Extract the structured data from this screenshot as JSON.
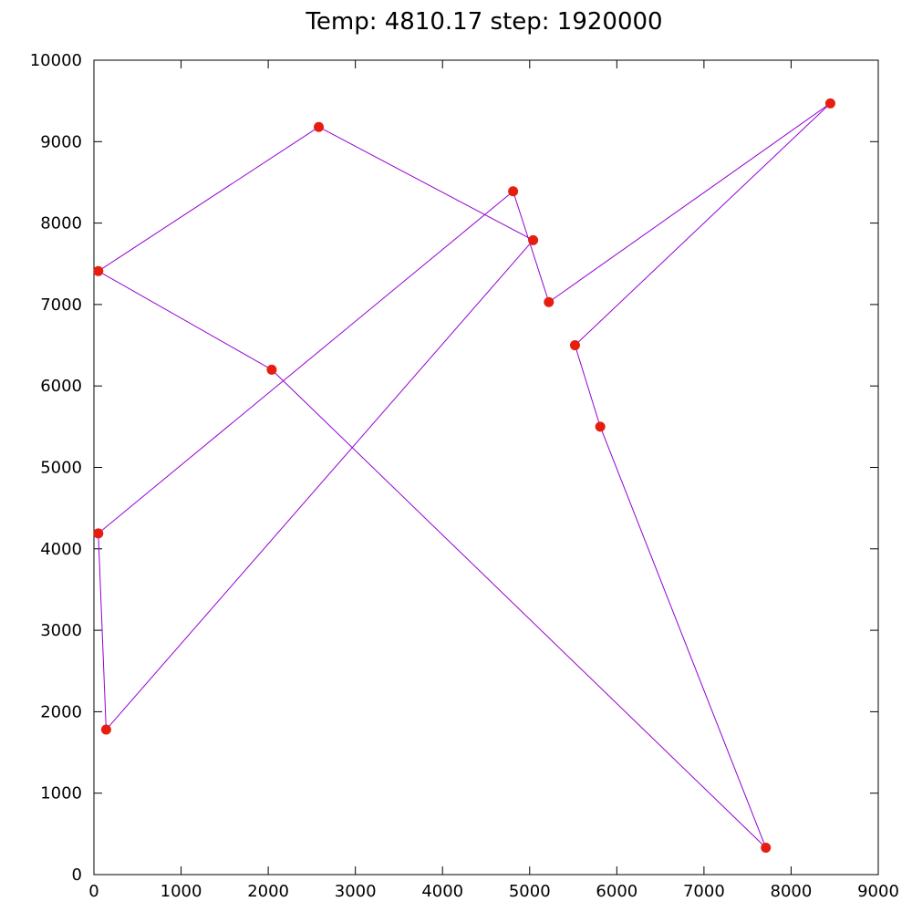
{
  "chart_data": {
    "type": "line",
    "title": "Temp: 4810.17  step: 1920000",
    "xlim": [
      0,
      9000
    ],
    "ylim": [
      0,
      10000
    ],
    "x_ticks": [
      0,
      1000,
      2000,
      3000,
      4000,
      5000,
      6000,
      7000,
      8000,
      9000
    ],
    "y_ticks": [
      0,
      1000,
      2000,
      3000,
      4000,
      5000,
      6000,
      7000,
      8000,
      9000,
      10000
    ],
    "grid": false,
    "line_color": "#9400d3",
    "point_color": "#e51e10",
    "path": [
      {
        "x": 2040,
        "y": 6200
      },
      {
        "x": 50,
        "y": 7410
      },
      {
        "x": 2580,
        "y": 9180
      },
      {
        "x": 5040,
        "y": 7790
      },
      {
        "x": 140,
        "y": 1780
      },
      {
        "x": 50,
        "y": 4190
      },
      {
        "x": 4810,
        "y": 8390
      },
      {
        "x": 5220,
        "y": 7030
      },
      {
        "x": 8450,
        "y": 9470
      },
      {
        "x": 5520,
        "y": 6500
      },
      {
        "x": 5810,
        "y": 5500
      },
      {
        "x": 7710,
        "y": 330
      },
      {
        "x": 2040,
        "y": 6200
      }
    ]
  }
}
